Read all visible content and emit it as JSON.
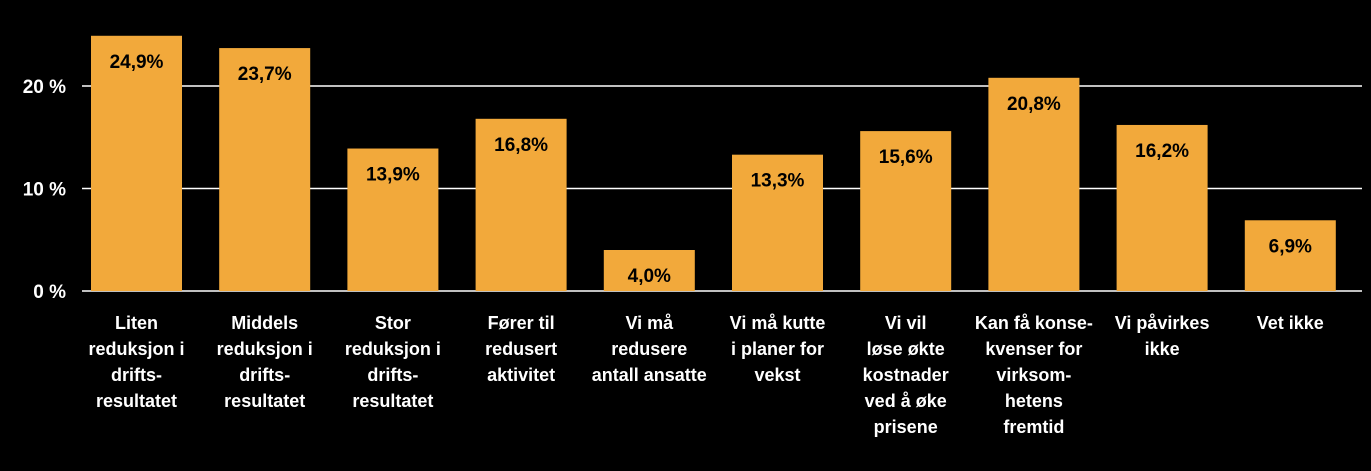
{
  "colors": {
    "background": "#000000",
    "bar": "#F2A93B",
    "gridline": "#ffffff",
    "text": "#ffffff",
    "data_label": "#000000"
  },
  "chart_data": {
    "type": "bar",
    "title": "",
    "xlabel": "",
    "ylabel": "",
    "ylim": [
      0,
      25
    ],
    "grid": true,
    "legend": "none",
    "y_ticks": [
      {
        "value": 0,
        "label": "0 %"
      },
      {
        "value": 10,
        "label": "10 %"
      },
      {
        "value": 20,
        "label": "20 %"
      }
    ],
    "categories": [
      [
        "Liten",
        "reduksjon i",
        "drifts-",
        "resultatet"
      ],
      [
        "Middels",
        "reduksjon i",
        "drifts-",
        "resultatet"
      ],
      [
        "Stor",
        "reduksjon i",
        "drifts-",
        "resultatet"
      ],
      [
        "Fører til",
        "redusert",
        "aktivitet"
      ],
      [
        "Vi må",
        "redusere",
        "antall ansatte"
      ],
      [
        "Vi må kutte",
        "i planer for",
        "vekst"
      ],
      [
        "Vi vil",
        "løse økte",
        "kostnader",
        "ved å øke",
        "prisene"
      ],
      [
        "Kan få konse-",
        "kvenser for",
        "virksom-",
        "hetens",
        "fremtid"
      ],
      [
        "Vi påvirkes",
        "ikke"
      ],
      [
        "Vet ikke"
      ]
    ],
    "values": [
      24.9,
      23.7,
      13.9,
      16.8,
      4.0,
      13.3,
      15.6,
      20.8,
      16.2,
      6.9
    ],
    "value_labels": [
      "24,9%",
      "23,7%",
      "13,9%",
      "16,8%",
      "4,0%",
      "13,3%",
      "15,6%",
      "20,8%",
      "16,2%",
      "6,9%"
    ]
  }
}
